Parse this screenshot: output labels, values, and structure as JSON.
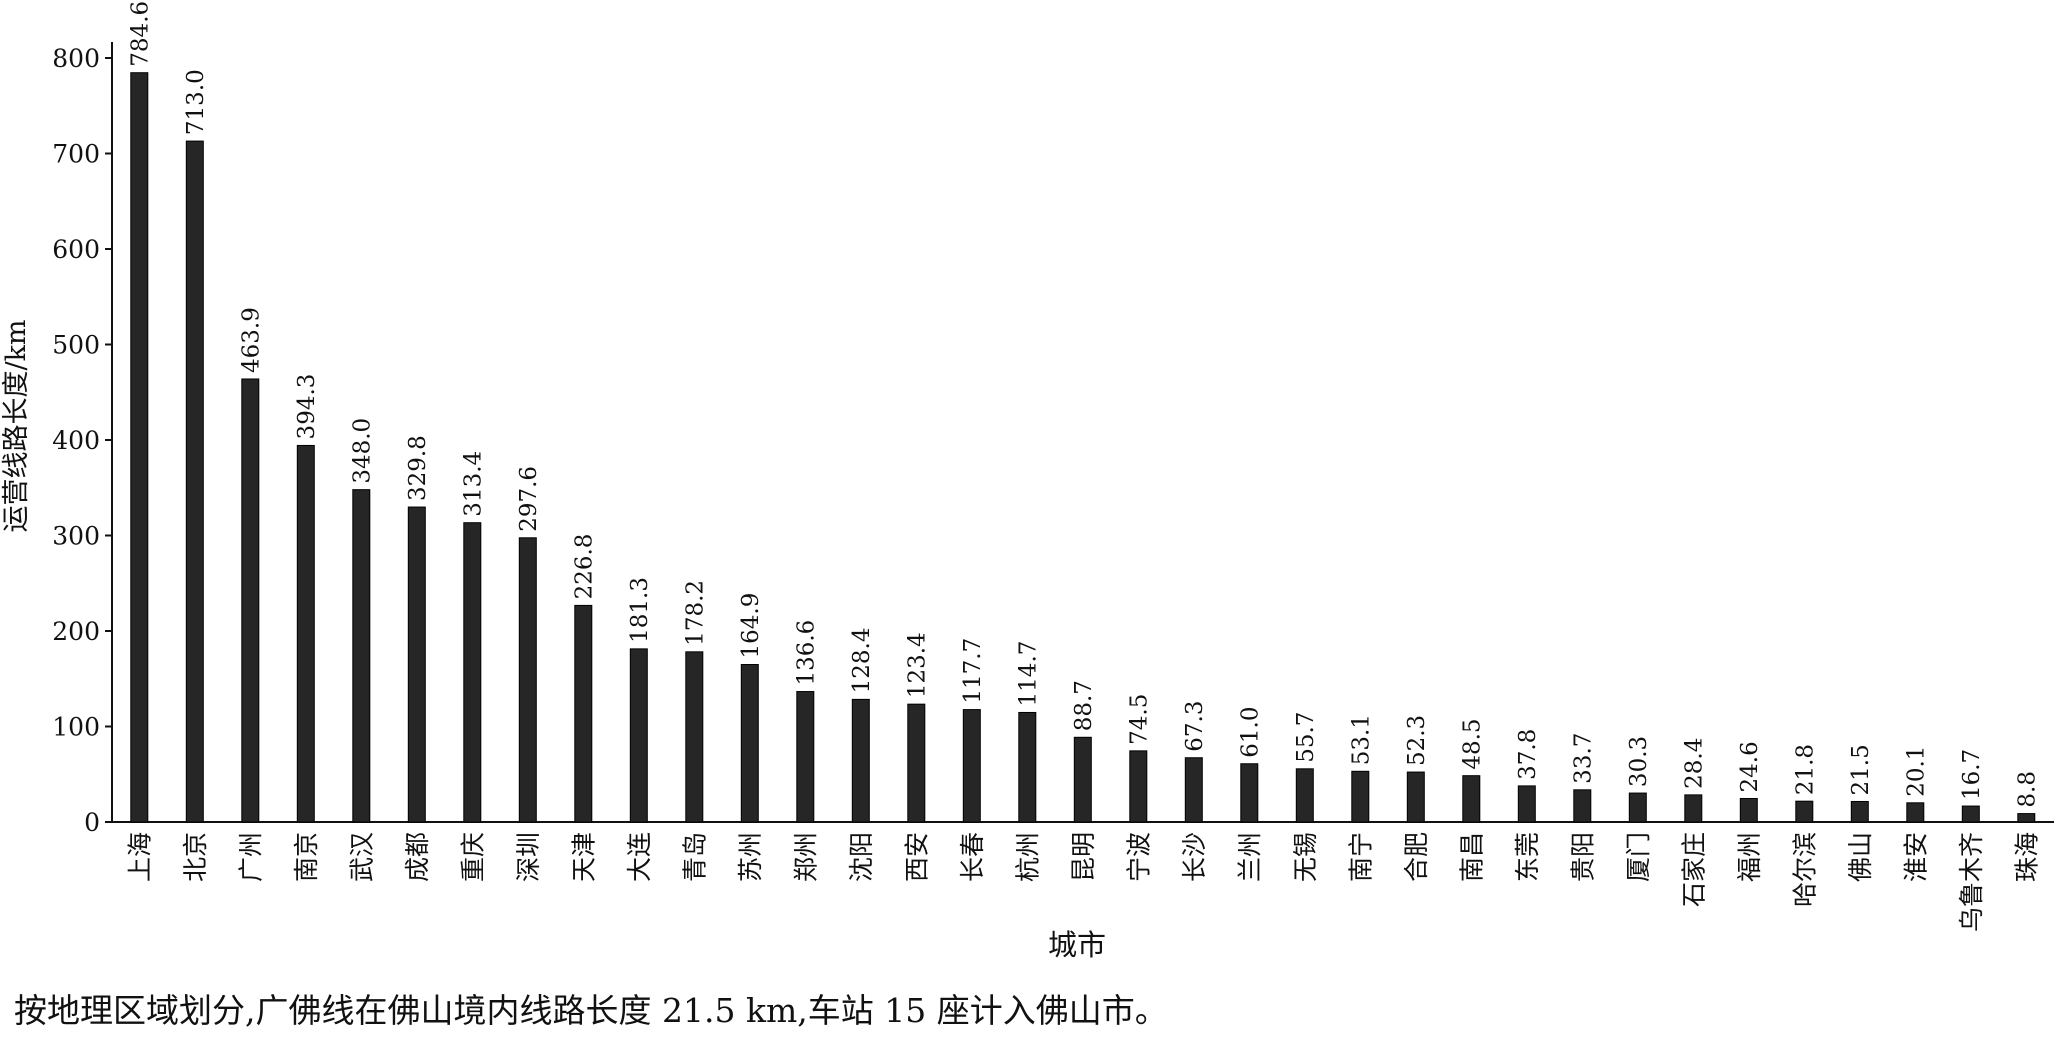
{
  "chart_data": {
    "type": "bar",
    "xlabel": "城市",
    "ylabel": "运营线路长度/km",
    "ylim": [
      0,
      800
    ],
    "yticks": [
      "0",
      "100",
      "200",
      "300",
      "400",
      "500",
      "600",
      "700",
      "800"
    ],
    "categories": [
      "上海",
      "北京",
      "广州",
      "南京",
      "武汉",
      "成都",
      "重庆",
      "深圳",
      "天津",
      "大连",
      "青岛",
      "苏州",
      "郑州",
      "沈阳",
      "西安",
      "长春",
      "杭州",
      "昆明",
      "宁波",
      "长沙",
      "兰州",
      "无锡",
      "南宁",
      "合肥",
      "南昌",
      "东莞",
      "贵阳",
      "厦门",
      "石家庄",
      "福州",
      "哈尔滨",
      "佛山",
      "淮安",
      "乌鲁木齐",
      "珠海"
    ],
    "values": [
      784.6,
      713.0,
      463.9,
      394.3,
      348.0,
      329.8,
      313.4,
      297.6,
      226.8,
      181.3,
      178.2,
      164.9,
      136.6,
      128.4,
      123.4,
      117.7,
      114.7,
      88.7,
      74.5,
      67.3,
      61.0,
      55.7,
      53.1,
      52.3,
      48.5,
      37.8,
      33.7,
      30.3,
      28.4,
      24.6,
      21.8,
      21.5,
      20.1,
      16.7,
      8.8
    ],
    "value_labels": [
      "784.6",
      "713.0",
      "463.9",
      "394.3",
      "348.0",
      "329.8",
      "313.4",
      "297.6",
      "226.8",
      "181.3",
      "178.2",
      "164.9",
      "136.6",
      "128.4",
      "123.4",
      "117.7",
      "114.7",
      "88.7",
      "74.5",
      "67.3",
      "61.0",
      "55.7",
      "53.1",
      "52.3",
      "48.5",
      "37.8",
      "33.7",
      "30.3",
      "28.4",
      "24.6",
      "21.8",
      "21.5",
      "20.1",
      "16.7",
      "8.8"
    ],
    "bar_color": "#262626",
    "grid": false,
    "legend": "none"
  },
  "footnote": "按地理区域划分,广佛线在佛山境内线路长度 21.5 km,车站 15 座计入佛山市。"
}
